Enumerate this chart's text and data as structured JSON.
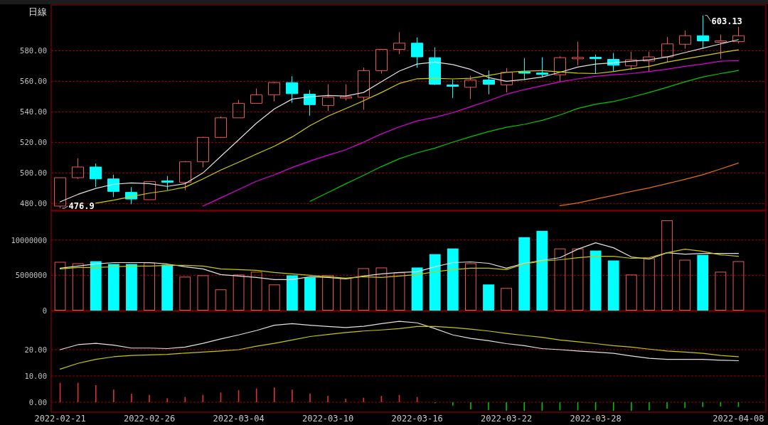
{
  "chart_data": [
    {
      "type": "candlestick",
      "title": "日線",
      "categories": [
        "2022-02-21",
        null,
        null,
        null,
        null,
        "2022-02-26",
        null,
        null,
        null,
        null,
        "2022-03-04",
        null,
        null,
        null,
        null,
        "2022-03-10",
        null,
        null,
        null,
        null,
        "2022-03-16",
        null,
        null,
        null,
        null,
        "2022-03-22",
        null,
        null,
        null,
        null,
        "2022-03-28",
        null,
        null,
        null,
        null,
        null,
        null,
        null,
        "2022-04-08"
      ],
      "ohlc": [
        [
          478.3,
          496.9,
          476.9,
          496.9
        ],
        [
          496.9,
          509.6,
          496.1,
          503.9
        ],
        [
          503.9,
          506.2,
          490.7,
          496.1
        ],
        [
          496.1,
          498.9,
          484.2,
          487.9
        ],
        [
          487.3,
          490.7,
          479.5,
          482.9
        ],
        [
          482.5,
          494.7,
          482.5,
          494.4
        ],
        [
          494.5,
          498.0,
          488.7,
          494.3
        ],
        [
          493.8,
          507.8,
          488.7,
          507.3
        ],
        [
          507.3,
          523.6,
          503.7,
          523.3
        ],
        [
          523.3,
          536.9,
          522.8,
          536.1
        ],
        [
          536.1,
          547.8,
          536.1,
          545.6
        ],
        [
          545.6,
          555.3,
          545.6,
          551.2
        ],
        [
          551.2,
          559.7,
          546.8,
          559.2
        ],
        [
          559.2,
          563.3,
          546.0,
          551.9
        ],
        [
          551.6,
          554.3,
          537.5,
          544.7
        ],
        [
          544.2,
          558.1,
          540.6,
          549.6
        ],
        [
          549.1,
          558.1,
          547.4,
          549.9
        ],
        [
          549.6,
          569.0,
          541.4,
          567.0
        ],
        [
          567.0,
          581.2,
          565.1,
          580.9
        ],
        [
          580.9,
          592.2,
          577.8,
          585.0
        ],
        [
          585.0,
          588.7,
          569.0,
          576.0
        ],
        [
          575.5,
          582.2,
          557.7,
          558.1
        ],
        [
          557.4,
          561.2,
          549.1,
          556.9
        ],
        [
          556.1,
          563.6,
          548.4,
          560.9
        ],
        [
          560.9,
          567.1,
          551.5,
          558.1
        ],
        [
          557.7,
          568.7,
          552.7,
          565.9
        ],
        [
          566.0,
          575.2,
          560.9,
          565.6
        ],
        [
          565.2,
          575.8,
          562.8,
          564.8
        ],
        [
          564.3,
          576.4,
          559.7,
          575.5
        ],
        [
          575.0,
          586.0,
          570.5,
          575.4
        ],
        [
          575.5,
          577.5,
          565.1,
          575.1
        ],
        [
          574.4,
          578.6,
          566.7,
          570.5
        ],
        [
          570.1,
          579.4,
          567.4,
          574.1
        ],
        [
          573.3,
          579.4,
          566.2,
          576.0
        ],
        [
          576.0,
          589.1,
          572.6,
          584.5
        ],
        [
          584.3,
          593.3,
          581.4,
          589.9
        ],
        [
          589.9,
          603.13,
          581.4,
          586.5
        ],
        [
          585.8,
          590.7,
          574.7,
          586.2
        ],
        [
          586.0,
          595.7,
          584.9,
          589.9
        ]
      ],
      "colors": [
        "#e85858",
        "#e85858",
        "#00ffff",
        "#00ffff",
        "#00ffff",
        "#e85858",
        "#00ffff",
        "#e85858",
        "#e85858",
        "#e85858",
        "#e85858",
        "#e85858",
        "#e85858",
        "#00ffff",
        "#00ffff",
        "#e85858",
        "#e85858",
        "#e85858",
        "#e85858",
        "#e85858",
        "#00ffff",
        "#00ffff",
        "#00ffff",
        "#e85858",
        "#00ffff",
        "#e85858",
        "#00ffff",
        "#00ffff",
        "#e85858",
        "#e85858",
        "#00ffff",
        "#00ffff",
        "#e85858",
        "#e85858",
        "#e85858",
        "#e85858",
        "#00ffff",
        "#e85858",
        "#e85858"
      ],
      "series": [
        {
          "type": "line",
          "color": "#e0e0e0",
          "values": [
            481.1,
            486.0,
            489.9,
            492.6,
            493.5,
            493.0,
            491.2,
            493.0,
            500.0,
            510.9,
            521.7,
            532.6,
            541.9,
            548.4,
            549.9,
            550.7,
            550.4,
            552.7,
            559.7,
            566.7,
            571.3,
            572.6,
            571.0,
            567.8,
            562.5,
            560.0,
            561.2,
            562.8,
            565.9,
            569.3,
            571.3,
            572.1,
            573.2,
            574.1,
            576.0,
            578.8,
            581.7,
            584.5,
            587.3
          ]
        },
        {
          "type": "line",
          "color": "#d0d000",
          "values": [
            null,
            null,
            480.2,
            482.2,
            484.5,
            486.8,
            488.4,
            490.7,
            496.1,
            501.9,
            507.0,
            512.4,
            517.5,
            523.6,
            531.0,
            537.2,
            542.2,
            547.3,
            552.7,
            558.6,
            561.7,
            562.0,
            561.6,
            562.0,
            563.9,
            565.9,
            566.7,
            567.0,
            566.2,
            565.4,
            565.1,
            566.4,
            568.2,
            569.8,
            572.6,
            574.7,
            576.7,
            578.8,
            580.6
          ]
        },
        {
          "type": "line",
          "color": "#e000e0",
          "values": [
            null,
            null,
            null,
            null,
            null,
            null,
            null,
            null,
            478.3,
            483.7,
            489.1,
            494.6,
            498.8,
            503.6,
            507.8,
            511.6,
            515.2,
            520.2,
            525.6,
            530.2,
            534.1,
            536.4,
            539.5,
            543.4,
            547.3,
            551.5,
            554.6,
            557.1,
            559.7,
            561.6,
            563.3,
            564.3,
            565.1,
            566.4,
            567.9,
            569.8,
            571.3,
            573.2,
            573.5
          ]
        },
        {
          "type": "line",
          "color": "#00c800",
          "values": [
            null,
            null,
            null,
            null,
            null,
            null,
            null,
            null,
            null,
            null,
            null,
            null,
            null,
            null,
            481.4,
            487.1,
            492.9,
            498.4,
            504.2,
            509.3,
            513.2,
            516.3,
            520.2,
            523.7,
            527.1,
            529.9,
            531.8,
            534.4,
            538.0,
            542.2,
            545.0,
            546.8,
            549.6,
            552.7,
            556.1,
            559.7,
            562.8,
            565.1,
            567.1
          ]
        },
        {
          "type": "line",
          "color": "#e07010",
          "values": [
            null,
            null,
            null,
            null,
            null,
            null,
            null,
            null,
            null,
            null,
            null,
            null,
            null,
            null,
            null,
            null,
            null,
            null,
            null,
            null,
            null,
            null,
            null,
            null,
            null,
            null,
            null,
            null,
            478.6,
            480.3,
            482.9,
            485.3,
            487.9,
            490.2,
            493.0,
            495.8,
            498.8,
            502.6,
            506.5
          ]
        }
      ],
      "ylim": [
        475.5,
        610
      ],
      "yticks": [
        {
          "value": 480,
          "label": "480.00"
        },
        {
          "value": 500,
          "label": "500.00"
        },
        {
          "value": 520,
          "label": "520.00"
        },
        {
          "value": 540,
          "label": "540.00"
        },
        {
          "value": 560,
          "label": "560.00"
        },
        {
          "value": 580,
          "label": "580.00"
        }
      ],
      "grid": "y",
      "tick_labels": "y",
      "annotations": [
        "476.9",
        "603.13"
      ]
    },
    {
      "type": "bar",
      "categories": [
        "2022-02-21",
        null,
        null,
        null,
        null,
        "2022-02-26",
        null,
        null,
        null,
        null,
        "2022-03-04",
        null,
        null,
        null,
        null,
        "2022-03-10",
        null,
        null,
        null,
        null,
        "2022-03-16",
        null,
        null,
        null,
        null,
        "2022-03-22",
        null,
        null,
        null,
        null,
        "2022-03-28",
        null,
        null,
        null,
        null,
        null,
        null,
        null,
        "2022-04-08"
      ],
      "series": [
        {
          "values": [
            6900000,
            6700000,
            7000000,
            6600000,
            6600000,
            6800000,
            6500000,
            4800000,
            5000000,
            3000000,
            5100000,
            5500000,
            3700000,
            5000000,
            4700000,
            5000000,
            4600000,
            6000000,
            6100000,
            5400000,
            6100000,
            8000000,
            8800000,
            6700000,
            3700000,
            3200000,
            10400000,
            11300000,
            8800000,
            8800000,
            8500000,
            7100000,
            5100000,
            7400000,
            12800000,
            7200000,
            7900000,
            5500000,
            7000000
          ],
          "colors": [
            "#e85858",
            "#e85858",
            "#00ffff",
            "#00ffff",
            "#00ffff",
            "#e85858",
            "#00ffff",
            "#e85858",
            "#e85858",
            "#e85858",
            "#e85858",
            "#e85858",
            "#e85858",
            "#00ffff",
            "#00ffff",
            "#e85858",
            "#e85858",
            "#e85858",
            "#e85858",
            "#e85858",
            "#00ffff",
            "#00ffff",
            "#00ffff",
            "#e85858",
            "#00ffff",
            "#e85858",
            "#00ffff",
            "#00ffff",
            "#e85858",
            "#e85858",
            "#00ffff",
            "#00ffff",
            "#e85858",
            "#e85858",
            "#e85858",
            "#e85858",
            "#00ffff",
            "#e85858",
            "#e85858"
          ]
        },
        {
          "type": "line",
          "color": "#e0e0e0",
          "values": [
            6000000,
            6300000,
            6600000,
            6800000,
            6800000,
            6800000,
            6600000,
            6200000,
            5900000,
            5100000,
            4900000,
            4700000,
            4400000,
            4400000,
            4800000,
            4700000,
            4500000,
            4900000,
            5200000,
            5400000,
            5500000,
            6200000,
            6800000,
            6900000,
            6700000,
            6000000,
            6700000,
            7100000,
            7500000,
            8700000,
            9600000,
            8900000,
            7600000,
            7300000,
            8200000,
            8000000,
            8100000,
            8100000,
            8100000
          ]
        },
        {
          "type": "line",
          "color": "#c8c800",
          "values": [
            5900000,
            6100000,
            6100000,
            6200000,
            6300000,
            6300000,
            6400000,
            6400000,
            6300000,
            5900000,
            5800000,
            5700000,
            5400000,
            5200000,
            5000000,
            4800000,
            4600000,
            4800000,
            4700000,
            4900000,
            5100000,
            5500000,
            5800000,
            6000000,
            6000000,
            5800000,
            6600000,
            7000000,
            7200000,
            7500000,
            7700000,
            7700000,
            7400000,
            7500000,
            8200000,
            8700000,
            8400000,
            7900000,
            7700000
          ]
        }
      ],
      "ylim": [
        0,
        14100000
      ],
      "yticks": [
        0,
        5000000,
        10000000
      ],
      "grid": "y",
      "tick_labels": "y"
    },
    {
      "type": "line",
      "categories": [
        "2022-02-21",
        null,
        null,
        null,
        null,
        "2022-02-26",
        null,
        null,
        null,
        null,
        "2022-03-04",
        null,
        null,
        null,
        null,
        "2022-03-10",
        null,
        null,
        null,
        null,
        "2022-03-16",
        null,
        null,
        null,
        null,
        "2022-03-22",
        null,
        null,
        null,
        null,
        "2022-03-28",
        null,
        null,
        null,
        null,
        null,
        null,
        null,
        "2022-04-08"
      ],
      "series": [
        {
          "type": "bar",
          "values": [
            7.4,
            7.4,
            6.5,
            4.8,
            3.2,
            2.8,
            1.5,
            2.0,
            2.8,
            3.7,
            4.6,
            5.2,
            5.6,
            4.8,
            3.3,
            2.4,
            1.3,
            1.7,
            2.4,
            2.8,
            2.0,
            -0.4,
            -1.3,
            -2.7,
            -3.0,
            -3.3,
            -3.3,
            -3.3,
            -3.1,
            -3.1,
            -3.1,
            -3.3,
            -3.3,
            -3.1,
            -2.5,
            -2.2,
            -1.8,
            -1.6,
            -1.8
          ],
          "colors": [
            "#e03030",
            "#e03030",
            "#e03030",
            "#e03030",
            "#e03030",
            "#e03030",
            "#e03030",
            "#e03030",
            "#e03030",
            "#e03030",
            "#e03030",
            "#e03030",
            "#e03030",
            "#e03030",
            "#e03030",
            "#e03030",
            "#e03030",
            "#e03030",
            "#e03030",
            "#e03030",
            "#e03030",
            "#00c000",
            "#00c000",
            "#00c000",
            "#00c000",
            "#00c000",
            "#00c000",
            "#00c000",
            "#00c000",
            "#00c000",
            "#00c000",
            "#00c000",
            "#00c000",
            "#00c000",
            "#00c000",
            "#00c000",
            "#00c000",
            "#00c000",
            "#00c000"
          ]
        },
        {
          "color": "#e0e0e0",
          "values": [
            20.0,
            21.9,
            22.4,
            21.7,
            20.6,
            20.6,
            20.4,
            21.0,
            22.4,
            24.1,
            25.6,
            27.3,
            29.3,
            29.9,
            29.3,
            28.8,
            28.4,
            28.9,
            29.9,
            30.8,
            30.2,
            28.0,
            25.6,
            24.3,
            23.4,
            22.3,
            21.5,
            20.4,
            20.0,
            19.5,
            19.1,
            18.6,
            17.6,
            16.7,
            16.3,
            16.3,
            16.3,
            16.0,
            15.8
          ]
        },
        {
          "color": "#c8c800",
          "values": [
            12.6,
            14.8,
            16.3,
            17.3,
            17.8,
            18.0,
            18.2,
            18.7,
            19.1,
            19.5,
            20.0,
            21.3,
            22.4,
            23.7,
            25.0,
            25.8,
            26.5,
            27.1,
            27.5,
            28.0,
            28.8,
            28.8,
            28.4,
            27.8,
            27.1,
            26.2,
            25.4,
            24.7,
            23.7,
            23.0,
            22.3,
            21.5,
            21.0,
            20.2,
            19.5,
            19.1,
            18.6,
            17.8,
            17.3
          ]
        }
      ],
      "ylim": [
        -3.8,
        34.6
      ],
      "yticks": [
        {
          "value": 0,
          "label": "0.00"
        },
        {
          "value": 10,
          "label": "10.00"
        },
        {
          "value": 20,
          "label": "20.00"
        }
      ],
      "grid": "y"
    }
  ]
}
